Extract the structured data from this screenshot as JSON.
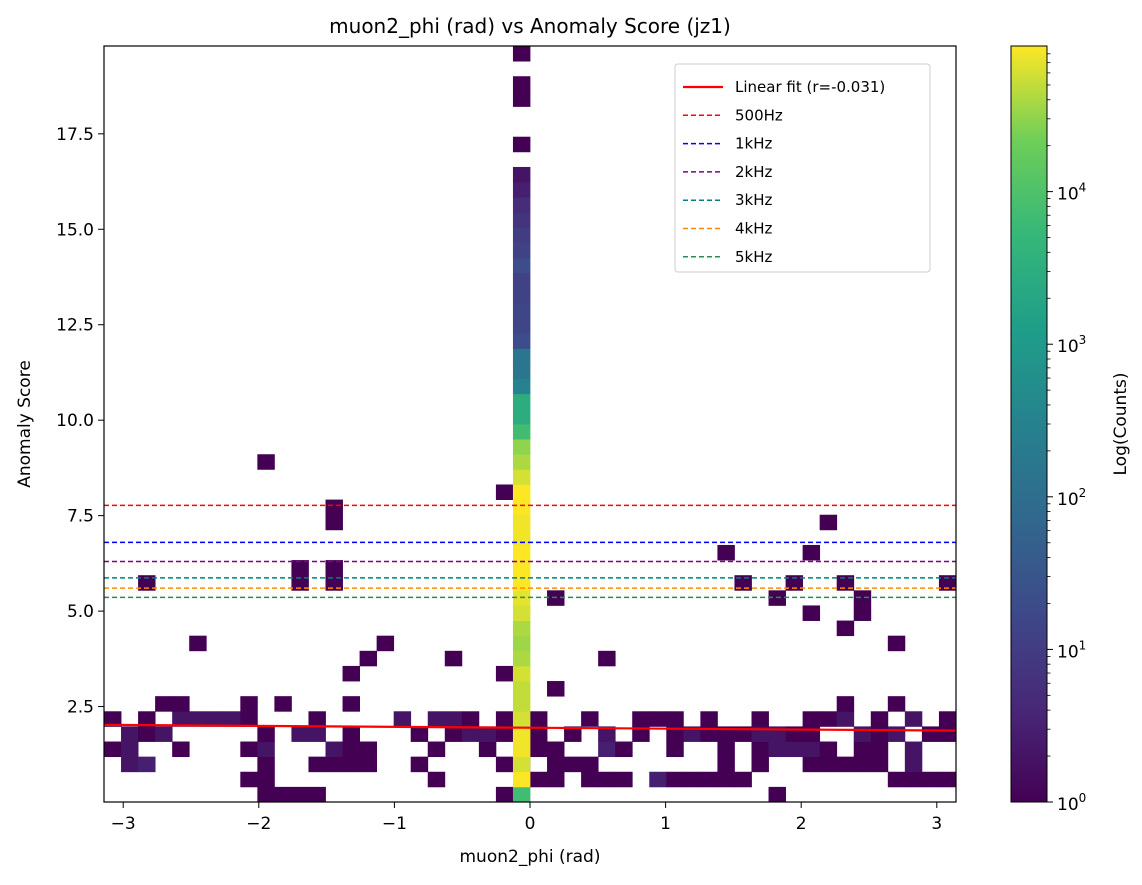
{
  "chart_data": {
    "type": "heatmap",
    "title": "muon2_phi (rad) vs Anomaly Score (jz1)",
    "xlabel": "muon2_phi (rad)",
    "ylabel": "Anomaly Score",
    "colorbar_label": "Log(Counts)",
    "colormap": "viridis",
    "color_scale": "log",
    "xlim": [
      -3.1416,
      3.1416
    ],
    "ylim": [
      0.0,
      19.8
    ],
    "bins": {
      "x": 50,
      "y": 50,
      "x_width": 0.12566,
      "y_width": 0.396
    },
    "x_ticks": [
      {
        "value": -3,
        "label": "−3"
      },
      {
        "value": -2,
        "label": "−2"
      },
      {
        "value": -1,
        "label": "−1"
      },
      {
        "value": 0,
        "label": "0"
      },
      {
        "value": 1,
        "label": "1"
      },
      {
        "value": 2,
        "label": "2"
      },
      {
        "value": 3,
        "label": "3"
      }
    ],
    "y_ticks": [
      {
        "value": 2.5,
        "label": "2.5"
      },
      {
        "value": 5.0,
        "label": "5.0"
      },
      {
        "value": 7.5,
        "label": "7.5"
      },
      {
        "value": 10.0,
        "label": "10.0"
      },
      {
        "value": 12.5,
        "label": "12.5"
      },
      {
        "value": 15.0,
        "label": "15.0"
      },
      {
        "value": 17.5,
        "label": "17.5"
      }
    ],
    "colorbar_ticks": [
      {
        "value": 1,
        "base": "10",
        "exp": "0"
      },
      {
        "value": 10,
        "base": "10",
        "exp": "1"
      },
      {
        "value": 100,
        "base": "10",
        "exp": "2"
      },
      {
        "value": 1000,
        "base": "10",
        "exp": "3"
      },
      {
        "value": 10000,
        "base": "10",
        "exp": "4"
      }
    ],
    "color_range": [
      1,
      90000
    ],
    "fit_line": {
      "label": "Linear fit (r=-0.031)",
      "color": "#ff0000",
      "points": [
        [
          -3.1416,
          2.02
        ],
        [
          3.1416,
          1.87
        ]
      ]
    },
    "thresholds": [
      {
        "label": "500Hz",
        "value": 7.77,
        "color": "#ff0000"
      },
      {
        "label": "1kHz",
        "value": 6.8,
        "color": "#0000ff"
      },
      {
        "label": "2kHz",
        "value": 6.3,
        "color": "#800080"
      },
      {
        "label": "3kHz",
        "value": 5.87,
        "color": "#008080"
      },
      {
        "label": "4kHz",
        "value": 5.6,
        "color": "#ff8c00"
      },
      {
        "label": "5kHz",
        "value": 5.36,
        "color": "#2e8b57"
      }
    ],
    "legend_position": "upper right",
    "central_column": {
      "x_bin": 24,
      "counts_by_y_bin": [
        7000,
        90000,
        60000,
        80000,
        80000,
        60000,
        50000,
        50000,
        60000,
        40000,
        35000,
        40000,
        60000,
        70000,
        90000,
        90000,
        90000,
        80000,
        80000,
        90000,
        90000,
        60000,
        40000,
        30000,
        7000,
        3000,
        3000,
        300,
        150,
        150,
        20,
        15,
        15,
        12,
        12,
        20,
        12,
        10,
        7,
        5,
        3,
        2,
        0,
        1,
        0,
        0,
        1,
        1,
        0,
        1
      ]
    },
    "cells": [
      [
        0,
        5,
        1
      ],
      [
        23,
        5,
        1
      ],
      [
        50,
        1,
        1
      ],
      [
        0,
        3,
        1
      ],
      [
        1,
        2,
        2
      ],
      [
        1,
        3,
        2
      ],
      [
        1,
        4,
        2
      ],
      [
        2,
        2,
        3
      ],
      [
        2,
        4,
        1
      ],
      [
        2,
        5,
        1
      ],
      [
        2,
        14,
        1
      ],
      [
        3,
        4,
        2
      ],
      [
        3,
        6,
        1
      ],
      [
        4,
        3,
        1
      ],
      [
        4,
        5,
        2
      ],
      [
        4,
        6,
        1
      ],
      [
        5,
        5,
        2
      ],
      [
        5,
        10,
        1
      ],
      [
        6,
        5,
        2
      ],
      [
        7,
        5,
        2
      ],
      [
        8,
        1,
        1
      ],
      [
        8,
        3,
        1
      ],
      [
        8,
        5,
        1
      ],
      [
        8,
        6,
        1
      ],
      [
        9,
        0,
        1
      ],
      [
        9,
        1,
        1
      ],
      [
        9,
        2,
        1
      ],
      [
        9,
        3,
        2
      ],
      [
        9,
        4,
        1
      ],
      [
        9,
        22,
        1
      ],
      [
        10,
        0,
        1
      ],
      [
        10,
        6,
        1
      ],
      [
        11,
        0,
        1
      ],
      [
        11,
        4,
        2
      ],
      [
        11,
        14,
        1
      ],
      [
        11,
        15,
        1
      ],
      [
        12,
        2,
        1
      ],
      [
        12,
        0,
        1
      ],
      [
        12,
        4,
        2
      ],
      [
        12,
        5,
        1
      ],
      [
        13,
        2,
        1
      ],
      [
        13,
        3,
        2
      ],
      [
        13,
        15,
        1
      ],
      [
        13,
        14,
        1
      ],
      [
        13,
        18,
        1
      ],
      [
        13,
        19,
        1
      ],
      [
        14,
        2,
        1
      ],
      [
        14,
        3,
        1
      ],
      [
        14,
        4,
        1
      ],
      [
        14,
        6,
        1
      ],
      [
        14,
        8,
        1
      ],
      [
        15,
        2,
        1
      ],
      [
        15,
        3,
        1
      ],
      [
        15,
        9,
        1
      ],
      [
        16,
        10,
        1
      ],
      [
        17,
        5,
        2
      ],
      [
        18,
        4,
        1
      ],
      [
        18,
        2,
        1
      ],
      [
        19,
        1,
        1
      ],
      [
        19,
        3,
        1
      ],
      [
        19,
        5,
        2
      ],
      [
        20,
        4,
        1
      ],
      [
        20,
        5,
        2
      ],
      [
        20,
        9,
        1
      ],
      [
        21,
        4,
        2
      ],
      [
        21,
        5,
        1
      ],
      [
        22,
        3,
        1
      ],
      [
        22,
        4,
        2
      ],
      [
        23,
        0,
        1
      ],
      [
        23,
        2,
        1
      ],
      [
        23,
        4,
        1
      ],
      [
        23,
        8,
        1
      ],
      [
        23,
        20,
        1
      ],
      [
        24,
        2,
        1
      ],
      [
        25,
        5,
        1
      ],
      [
        25,
        3,
        1
      ],
      [
        25,
        1,
        1
      ],
      [
        25,
        4,
        1
      ],
      [
        26,
        1,
        1
      ],
      [
        26,
        2,
        1
      ],
      [
        26,
        3,
        1
      ],
      [
        26,
        7,
        1
      ],
      [
        26,
        13,
        1
      ],
      [
        27,
        2,
        1
      ],
      [
        27,
        4,
        1
      ],
      [
        28,
        1,
        1
      ],
      [
        28,
        2,
        1
      ],
      [
        28,
        5,
        1
      ],
      [
        29,
        1,
        1
      ],
      [
        29,
        3,
        3
      ],
      [
        29,
        4,
        2
      ],
      [
        29,
        9,
        1
      ],
      [
        30,
        1,
        1
      ],
      [
        30,
        3,
        1
      ],
      [
        31,
        4,
        1
      ],
      [
        31,
        5,
        1
      ],
      [
        32,
        1,
        3
      ],
      [
        32,
        5,
        1
      ],
      [
        33,
        1,
        1
      ],
      [
        33,
        5,
        1
      ],
      [
        33,
        4,
        1
      ],
      [
        33,
        3,
        1
      ],
      [
        34,
        1,
        1
      ],
      [
        34,
        4,
        2
      ],
      [
        35,
        1,
        1
      ],
      [
        35,
        4,
        1
      ],
      [
        35,
        5,
        1
      ],
      [
        36,
        1,
        1
      ],
      [
        36,
        4,
        1
      ],
      [
        36,
        3,
        1
      ],
      [
        36,
        2,
        1
      ],
      [
        36,
        16,
        1
      ],
      [
        37,
        1,
        1
      ],
      [
        37,
        4,
        1
      ],
      [
        37,
        14,
        1
      ],
      [
        38,
        2,
        1
      ],
      [
        38,
        3,
        1
      ],
      [
        38,
        4,
        2
      ],
      [
        38,
        5,
        1
      ],
      [
        39,
        0,
        1
      ],
      [
        39,
        3,
        2
      ],
      [
        39,
        4,
        2
      ],
      [
        39,
        13,
        1
      ],
      [
        40,
        3,
        2
      ],
      [
        40,
        4,
        1
      ],
      [
        40,
        14,
        1
      ],
      [
        41,
        2,
        1
      ],
      [
        41,
        3,
        2
      ],
      [
        41,
        4,
        1
      ],
      [
        41,
        5,
        1
      ],
      [
        41,
        12,
        1
      ],
      [
        41,
        16,
        1
      ],
      [
        42,
        2,
        1
      ],
      [
        42,
        3,
        1
      ],
      [
        42,
        5,
        1
      ],
      [
        42,
        18,
        1
      ],
      [
        43,
        2,
        1
      ],
      [
        43,
        5,
        2
      ],
      [
        43,
        6,
        1
      ],
      [
        43,
        14,
        1
      ],
      [
        43,
        11,
        1
      ],
      [
        44,
        2,
        1
      ],
      [
        44,
        3,
        1
      ],
      [
        44,
        4,
        2
      ],
      [
        44,
        12,
        1
      ],
      [
        44,
        13,
        1
      ],
      [
        45,
        2,
        1
      ],
      [
        45,
        3,
        1
      ],
      [
        45,
        4,
        1
      ],
      [
        45,
        5,
        1
      ],
      [
        46,
        1,
        1
      ],
      [
        46,
        4,
        2
      ],
      [
        46,
        6,
        1
      ],
      [
        46,
        10,
        1
      ],
      [
        47,
        1,
        1
      ],
      [
        47,
        2,
        2
      ],
      [
        47,
        3,
        2
      ],
      [
        47,
        5,
        2
      ],
      [
        48,
        1,
        1
      ],
      [
        48,
        4,
        1
      ],
      [
        49,
        1,
        1
      ],
      [
        49,
        4,
        1
      ],
      [
        49,
        5,
        1
      ],
      [
        49,
        14,
        1
      ]
    ]
  }
}
